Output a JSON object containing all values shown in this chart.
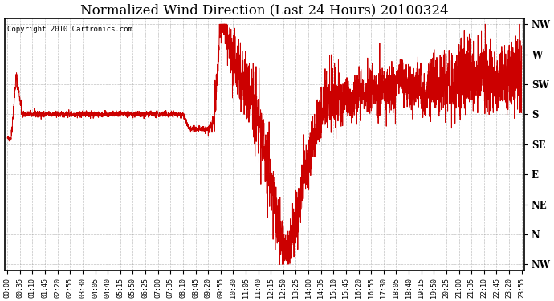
{
  "title": "Normalized Wind Direction (Last 24 Hours) 20100324",
  "copyright_text": "Copyright 2010 Cartronics.com",
  "line_color": "#cc0000",
  "background_color": "#ffffff",
  "grid_color": "#999999",
  "ytick_labels": [
    "NW",
    "W",
    "SW",
    "S",
    "SE",
    "E",
    "NE",
    "N",
    "NW"
  ],
  "ytick_values": [
    8,
    7,
    6,
    5,
    4,
    3,
    2,
    1,
    0
  ],
  "ylim": [
    -0.2,
    8.2
  ],
  "title_fontsize": 12,
  "xtick_labels": [
    "00:00",
    "00:35",
    "01:10",
    "01:45",
    "02:20",
    "02:55",
    "03:30",
    "04:05",
    "04:40",
    "05:15",
    "05:50",
    "06:25",
    "07:00",
    "07:35",
    "08:10",
    "08:45",
    "09:20",
    "09:55",
    "10:30",
    "11:05",
    "11:40",
    "12:15",
    "12:50",
    "13:25",
    "14:00",
    "14:35",
    "15:10",
    "15:45",
    "16:20",
    "16:55",
    "17:30",
    "18:05",
    "18:40",
    "19:15",
    "19:50",
    "20:25",
    "21:00",
    "21:35",
    "22:10",
    "22:45",
    "23:20",
    "23:55"
  ],
  "seed": 42,
  "figwidth": 6.9,
  "figheight": 3.75,
  "dpi": 100
}
